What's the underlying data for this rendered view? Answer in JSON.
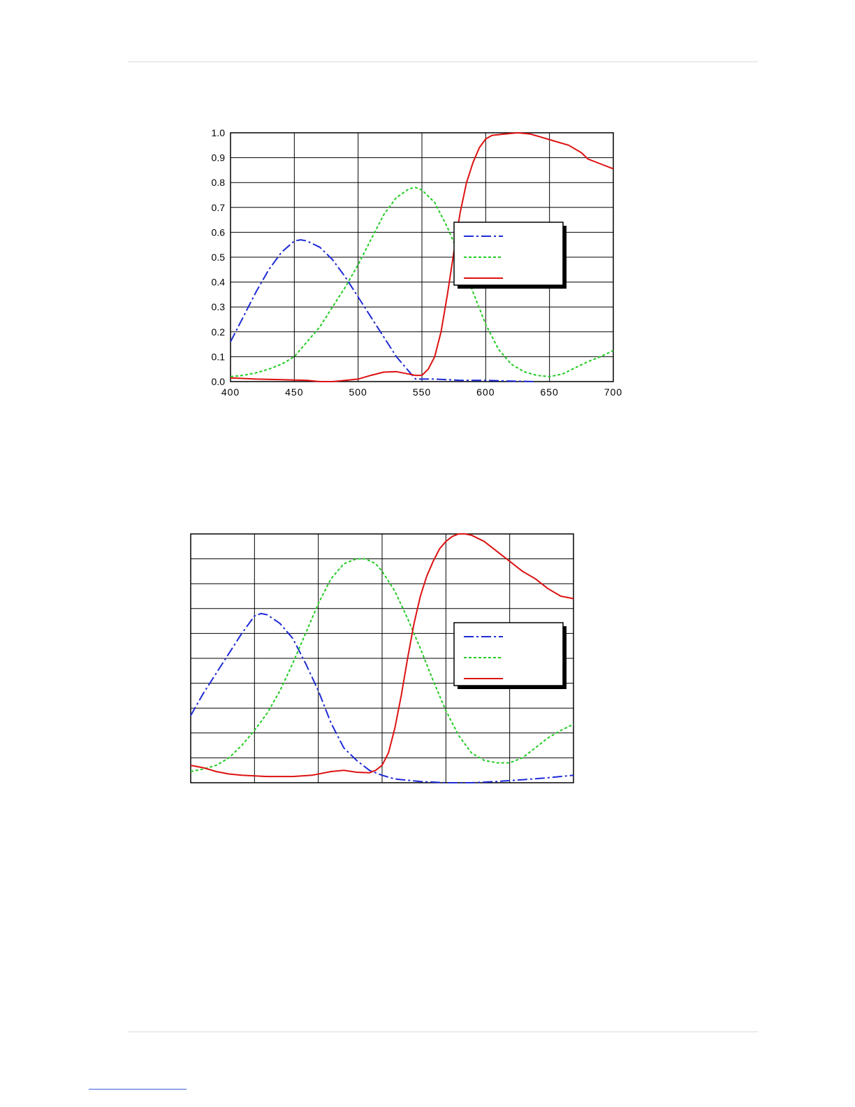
{
  "page": {
    "rule_color": "#d9d9d9",
    "link_underline_color": "#3b5bd6"
  },
  "chart_data": [
    {
      "type": "line",
      "title": "",
      "xlabel": "",
      "ylabel": "",
      "xlim": [
        400,
        700
      ],
      "ylim": [
        0,
        1
      ],
      "x_ticks": [
        400,
        450,
        500,
        550,
        600,
        650,
        700
      ],
      "y_ticks": [
        0.0,
        0.1,
        0.2,
        0.3,
        0.4,
        0.5,
        0.6,
        0.7,
        0.8,
        0.9,
        1.0
      ],
      "x_tick_labels": [
        "400",
        "450",
        "500",
        "550",
        "600",
        "650",
        "700"
      ],
      "y_tick_labels": [
        "0.0",
        "0.1",
        "0.2",
        "0.3",
        "0.4",
        "0.5",
        "0.6",
        "0.7",
        "0.8",
        "0.9",
        "1.0"
      ],
      "grid": true,
      "legend": {
        "placement": "right-middle",
        "show_labels": false
      },
      "series": [
        {
          "color": "#1f2bd6",
          "style": "dashdot",
          "points": [
            [
              400,
              0.16
            ],
            [
              410,
              0.26
            ],
            [
              420,
              0.36
            ],
            [
              430,
              0.45
            ],
            [
              440,
              0.52
            ],
            [
              450,
              0.565
            ],
            [
              455,
              0.57
            ],
            [
              460,
              0.565
            ],
            [
              470,
              0.54
            ],
            [
              480,
              0.49
            ],
            [
              490,
              0.42
            ],
            [
              500,
              0.34
            ],
            [
              510,
              0.26
            ],
            [
              520,
              0.18
            ],
            [
              530,
              0.1
            ],
            [
              540,
              0.04
            ],
            [
              545,
              0.01
            ],
            [
              550,
              0.01
            ],
            [
              560,
              0.01
            ],
            [
              580,
              0.005
            ],
            [
              600,
              0.005
            ],
            [
              620,
              0.002
            ],
            [
              638,
              0.0
            ]
          ]
        },
        {
          "color": "#22cc22",
          "style": "dashed",
          "points": [
            [
              400,
              0.02
            ],
            [
              410,
              0.025
            ],
            [
              420,
              0.035
            ],
            [
              430,
              0.05
            ],
            [
              440,
              0.07
            ],
            [
              450,
              0.1
            ],
            [
              460,
              0.16
            ],
            [
              470,
              0.22
            ],
            [
              480,
              0.3
            ],
            [
              490,
              0.38
            ],
            [
              500,
              0.47
            ],
            [
              510,
              0.57
            ],
            [
              520,
              0.67
            ],
            [
              530,
              0.74
            ],
            [
              540,
              0.775
            ],
            [
              545,
              0.78
            ],
            [
              550,
              0.77
            ],
            [
              560,
              0.72
            ],
            [
              570,
              0.62
            ],
            [
              580,
              0.5
            ],
            [
              590,
              0.36
            ],
            [
              600,
              0.23
            ],
            [
              610,
              0.13
            ],
            [
              620,
              0.07
            ],
            [
              630,
              0.04
            ],
            [
              640,
              0.025
            ],
            [
              650,
              0.02
            ],
            [
              660,
              0.03
            ],
            [
              670,
              0.055
            ],
            [
              680,
              0.08
            ],
            [
              690,
              0.1
            ],
            [
              700,
              0.125
            ]
          ]
        },
        {
          "color": "#dd1111",
          "style": "solid",
          "points": [
            [
              400,
              0.015
            ],
            [
              420,
              0.01
            ],
            [
              440,
              0.008
            ],
            [
              460,
              0.005
            ],
            [
              470,
              0.0
            ],
            [
              480,
              0.0
            ],
            [
              490,
              0.005
            ],
            [
              500,
              0.01
            ],
            [
              510,
              0.025
            ],
            [
              520,
              0.038
            ],
            [
              530,
              0.04
            ],
            [
              540,
              0.03
            ],
            [
              545,
              0.025
            ],
            [
              550,
              0.025
            ],
            [
              555,
              0.05
            ],
            [
              560,
              0.1
            ],
            [
              565,
              0.2
            ],
            [
              570,
              0.35
            ],
            [
              575,
              0.52
            ],
            [
              580,
              0.68
            ],
            [
              585,
              0.8
            ],
            [
              590,
              0.88
            ],
            [
              595,
              0.94
            ],
            [
              600,
              0.975
            ],
            [
              605,
              0.99
            ],
            [
              615,
              0.995
            ],
            [
              625,
              1.0
            ],
            [
              635,
              0.995
            ],
            [
              645,
              0.98
            ],
            [
              655,
              0.965
            ],
            [
              665,
              0.95
            ],
            [
              675,
              0.92
            ],
            [
              680,
              0.895
            ],
            [
              690,
              0.875
            ],
            [
              700,
              0.855
            ]
          ]
        }
      ]
    },
    {
      "type": "line",
      "title": "",
      "xlabel": "",
      "ylabel": "",
      "xlim": [
        400,
        700
      ],
      "ylim": [
        0,
        1
      ],
      "x_ticks": [
        400,
        450,
        500,
        550,
        600,
        650,
        700
      ],
      "y_ticks": [
        0.0,
        0.1,
        0.2,
        0.3,
        0.4,
        0.5,
        0.6,
        0.7,
        0.8,
        0.9,
        1.0
      ],
      "x_tick_labels": [],
      "y_tick_labels": [],
      "grid": true,
      "legend": {
        "placement": "right-middle",
        "show_labels": false
      },
      "series": [
        {
          "color": "#1f2bd6",
          "style": "dashdot",
          "points": [
            [
              400,
              0.27
            ],
            [
              410,
              0.36
            ],
            [
              420,
              0.44
            ],
            [
              430,
              0.52
            ],
            [
              440,
              0.6
            ],
            [
              450,
              0.67
            ],
            [
              455,
              0.68
            ],
            [
              460,
              0.675
            ],
            [
              470,
              0.64
            ],
            [
              480,
              0.58
            ],
            [
              490,
              0.48
            ],
            [
              500,
              0.37
            ],
            [
              510,
              0.24
            ],
            [
              520,
              0.14
            ],
            [
              530,
              0.09
            ],
            [
              540,
              0.05
            ],
            [
              550,
              0.03
            ],
            [
              560,
              0.015
            ],
            [
              580,
              0.005
            ],
            [
              600,
              0.0
            ],
            [
              620,
              0.0
            ],
            [
              640,
              0.005
            ],
            [
              660,
              0.012
            ],
            [
              680,
              0.02
            ],
            [
              700,
              0.03
            ]
          ]
        },
        {
          "color": "#22cc22",
          "style": "dashed",
          "points": [
            [
              400,
              0.045
            ],
            [
              410,
              0.055
            ],
            [
              420,
              0.07
            ],
            [
              430,
              0.1
            ],
            [
              440,
              0.15
            ],
            [
              450,
              0.21
            ],
            [
              460,
              0.28
            ],
            [
              470,
              0.37
            ],
            [
              480,
              0.48
            ],
            [
              490,
              0.6
            ],
            [
              500,
              0.72
            ],
            [
              510,
              0.82
            ],
            [
              520,
              0.88
            ],
            [
              530,
              0.9
            ],
            [
              537,
              0.9
            ],
            [
              545,
              0.88
            ],
            [
              550,
              0.85
            ],
            [
              560,
              0.77
            ],
            [
              570,
              0.66
            ],
            [
              580,
              0.54
            ],
            [
              590,
              0.41
            ],
            [
              600,
              0.29
            ],
            [
              610,
              0.19
            ],
            [
              620,
              0.12
            ],
            [
              630,
              0.09
            ],
            [
              640,
              0.08
            ],
            [
              650,
              0.08
            ],
            [
              660,
              0.1
            ],
            [
              670,
              0.14
            ],
            [
              680,
              0.18
            ],
            [
              690,
              0.21
            ],
            [
              700,
              0.235
            ]
          ]
        },
        {
          "color": "#dd1111",
          "style": "solid",
          "points": [
            [
              400,
              0.07
            ],
            [
              410,
              0.06
            ],
            [
              420,
              0.045
            ],
            [
              430,
              0.035
            ],
            [
              440,
              0.03
            ],
            [
              460,
              0.025
            ],
            [
              480,
              0.025
            ],
            [
              495,
              0.03
            ],
            [
              510,
              0.045
            ],
            [
              520,
              0.05
            ],
            [
              530,
              0.042
            ],
            [
              540,
              0.04
            ],
            [
              545,
              0.05
            ],
            [
              550,
              0.07
            ],
            [
              555,
              0.12
            ],
            [
              560,
              0.22
            ],
            [
              565,
              0.35
            ],
            [
              570,
              0.5
            ],
            [
              575,
              0.64
            ],
            [
              580,
              0.75
            ],
            [
              585,
              0.83
            ],
            [
              590,
              0.89
            ],
            [
              595,
              0.94
            ],
            [
              600,
              0.97
            ],
            [
              605,
              0.99
            ],
            [
              610,
              1.0
            ],
            [
              615,
              1.0
            ],
            [
              620,
              0.995
            ],
            [
              630,
              0.97
            ],
            [
              640,
              0.93
            ],
            [
              650,
              0.89
            ],
            [
              660,
              0.85
            ],
            [
              670,
              0.82
            ],
            [
              680,
              0.78
            ],
            [
              690,
              0.75
            ],
            [
              700,
              0.74
            ]
          ]
        }
      ]
    }
  ]
}
